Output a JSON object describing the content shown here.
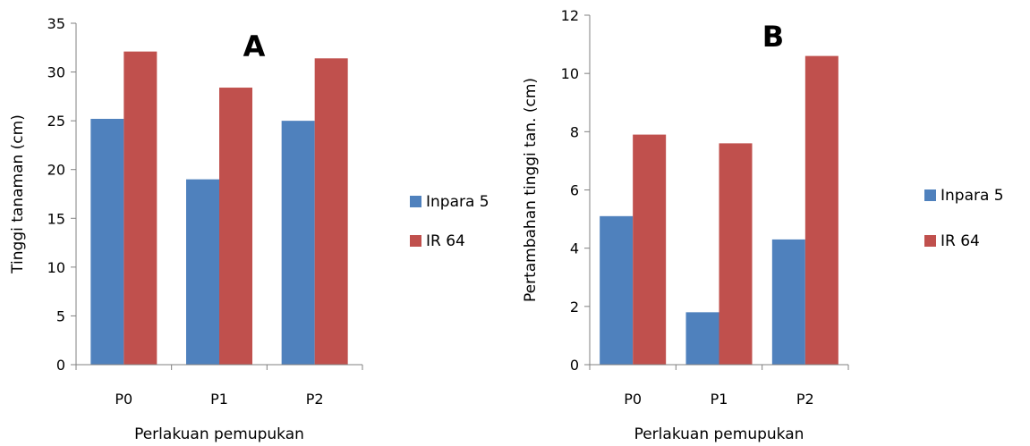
{
  "chart_data": [
    {
      "type": "bar",
      "panel_label": "A",
      "categories": [
        "P0",
        "P1",
        "P2"
      ],
      "series": [
        {
          "name": "Inpara 5",
          "values": [
            25.2,
            19.0,
            25.0
          ]
        },
        {
          "name": "IR 64",
          "values": [
            32.1,
            28.4,
            31.4
          ]
        }
      ],
      "xlabel": "Perlakuan pemupukan",
      "ylabel": "Tinggi tanaman (cm)",
      "ylim": [
        0,
        35
      ],
      "yticks": [
        "0",
        "5",
        "10",
        "15",
        "20",
        "25",
        "30",
        "35"
      ],
      "grid": false,
      "legend": "right"
    },
    {
      "type": "bar",
      "panel_label": "B",
      "categories": [
        "P0",
        "P1",
        "P2"
      ],
      "series": [
        {
          "name": "Inpara 5",
          "values": [
            5.1,
            1.8,
            4.3
          ]
        },
        {
          "name": "IR 64",
          "values": [
            7.9,
            7.6,
            10.6
          ]
        }
      ],
      "xlabel": "Perlakuan pemupukan",
      "ylabel": "Pertambahan tinggi tan. (cm)",
      "ylim": [
        0,
        12
      ],
      "yticks": [
        "0",
        "2",
        "4",
        "6",
        "8",
        "10",
        "12"
      ],
      "grid": false,
      "legend": "right"
    }
  ],
  "colors": {
    "Inpara 5": "#4f81bd",
    "IR 64": "#c0504d",
    "axis": "#808080"
  }
}
